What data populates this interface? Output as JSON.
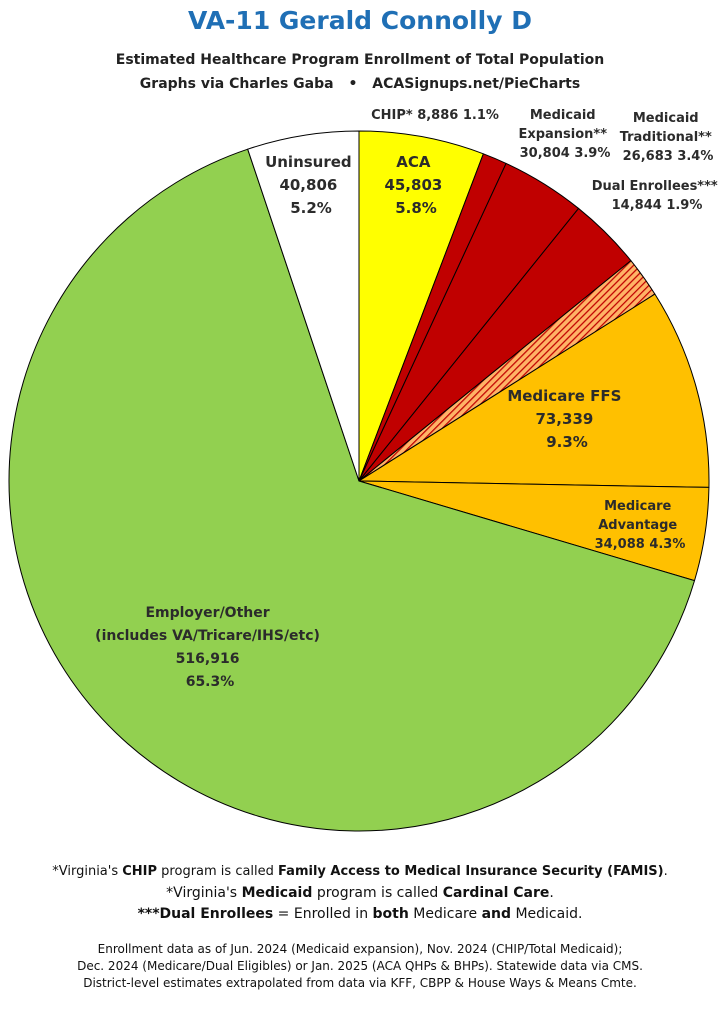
{
  "header": {
    "title": "VA-11 Gerald Connolly D",
    "subtitle": "Estimated Healthcare Program Enrollment of Total Population",
    "credit_left": "Graphs via Charles Gaba",
    "credit_sep": "•",
    "credit_right": "ACASignups.net/PieCharts"
  },
  "chart_data": {
    "type": "pie",
    "title": "Estimated Healthcare Program Enrollment of Total Population",
    "slices": [
      {
        "name": "ACA",
        "value": 45803,
        "percent": "5.8%",
        "color": "#ffff00"
      },
      {
        "name": "CHIP*",
        "value": 8886,
        "percent": "1.1%",
        "color": "#c00000"
      },
      {
        "name": "Medicaid Expansion**",
        "value": 30804,
        "percent": "3.9%",
        "color": "#c00000"
      },
      {
        "name": "Medicaid Traditional**",
        "value": 26683,
        "percent": "3.4%",
        "color": "#c00000"
      },
      {
        "name": "Dual Enrollees***",
        "value": 14844,
        "percent": "1.9%",
        "color": "#ff9933",
        "pattern": "hatched"
      },
      {
        "name": "Medicare FFS",
        "value": 73339,
        "percent": "9.3%",
        "color": "#ffc000"
      },
      {
        "name": "Medicare Advantage",
        "value": 34088,
        "percent": "4.3%",
        "color": "#ffc000"
      },
      {
        "name": "Employer/Other",
        "value": 516916,
        "percent": "65.3%",
        "color": "#92d050"
      },
      {
        "name": "Uninsured",
        "value": 40806,
        "percent": "5.2%",
        "color": "#ffffff"
      }
    ],
    "labels": {
      "aca": {
        "line1": "ACA",
        "line2": "45,803",
        "line3": "5.8%"
      },
      "chip": {
        "line1": "CHIP* 8,886 1.1%"
      },
      "medicaid_expansion": {
        "line1": "Medicaid",
        "line2": "Expansion**",
        "line3": "30,804 3.9%"
      },
      "medicaid_traditional": {
        "line1": "Medicaid",
        "line2": "Traditional**",
        "line3": "26,683 3.4%"
      },
      "dual": {
        "line1": "Dual Enrollees***",
        "line2": "14,844 1.9%"
      },
      "medicare_ffs": {
        "line1": "Medicare FFS",
        "line2": "73,339",
        "line3": "9.3%"
      },
      "medicare_adv": {
        "line1": "Medicare",
        "line2": "Advantage",
        "line3": "34,088 4.3%"
      },
      "employer": {
        "line1": "Employer/Other",
        "line2": "(includes VA/Tricare/IHS/etc)",
        "line3": "516,916",
        "line4": "65.3%"
      },
      "uninsured": {
        "line1": "Uninsured",
        "line2": "40,806",
        "line3": "5.2%"
      }
    }
  },
  "footer": {
    "n1_a": "*Virginia's ",
    "n1_b": "CHIP",
    "n1_c": " program is called ",
    "n1_d": "Family Access to Medical Insurance Security (FAMIS)",
    "n1_e": ".",
    "n2_a": "*Virginia's ",
    "n2_b": "Medicaid",
    "n2_c": " program is called ",
    "n2_d": "Cardinal Care",
    "n2_e": ".",
    "n3_a": "***Dual Enrollees",
    "n3_b": " = Enrolled in ",
    "n3_c": "both",
    "n3_d": " Medicare ",
    "n3_e": "and",
    "n3_f": " Medicaid.",
    "src1": "Enrollment data as of Jun. 2024 (Medicaid expansion), Nov. 2024 (CHIP/Total Medicaid);",
    "src2": "Dec. 2024 (Medicare/Dual Eligibles) or Jan. 2025 (ACA QHPs & BHPs). Statewide data via CMS.",
    "src3": "District-level estimates extrapolated from data via KFF, CBPP & House Ways & Means Cmte."
  }
}
